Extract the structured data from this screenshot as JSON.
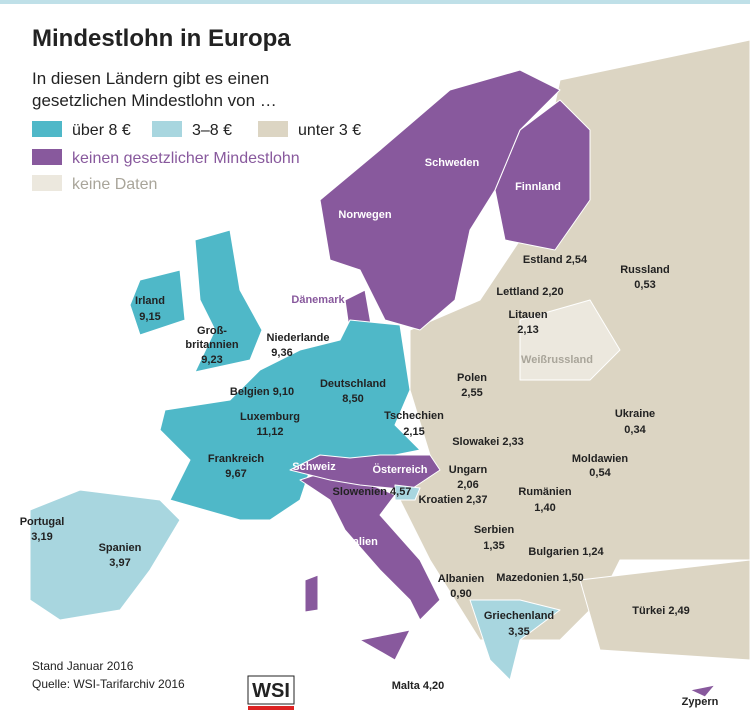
{
  "header": {
    "title": "Mindestlohn in Europa",
    "subtitle": [
      "In diesen Ländern gibt es einen",
      "gesetzlichen Mindestlohn von …"
    ]
  },
  "legend": [
    {
      "label": "über 8 €",
      "color": "#4fb8c8"
    },
    {
      "label": "3–8 €",
      "color": "#a8d6df"
    },
    {
      "label": "unter 3 €",
      "color": "#dcd5c3"
    },
    {
      "label": "keinen gesetzlicher Mindestlohn",
      "color": "#88599d"
    },
    {
      "label": "keine Daten",
      "color": "#ece8de"
    }
  ],
  "countries": [
    {
      "lines": [
        "Irland"
      ],
      "wage": "9,15",
      "color": "#4fb8c8"
    },
    {
      "lines": [
        "Groß-",
        "britannien"
      ],
      "wage": "9,23",
      "color": "#4fb8c8"
    },
    {
      "lines": [
        "Niederlande"
      ],
      "wage": "9,36",
      "color": "#4fb8c8"
    },
    {
      "lines": [
        "Belgien"
      ],
      "wage": "9,10",
      "color": "#4fb8c8"
    },
    {
      "lines": [
        "Luxemburg"
      ],
      "wage": "11,12",
      "color": "#4fb8c8"
    },
    {
      "lines": [
        "Frankreich"
      ],
      "wage": "9,67",
      "color": "#4fb8c8"
    },
    {
      "lines": [
        "Deutschland"
      ],
      "wage": "8,50",
      "color": "#4fb8c8"
    },
    {
      "lines": [
        "Portugal"
      ],
      "wage": "3,19",
      "color": "#a8d6df"
    },
    {
      "lines": [
        "Spanien"
      ],
      "wage": "3,97",
      "color": "#a8d6df"
    },
    {
      "lines": [
        "Schweiz"
      ],
      "color": "#88599d"
    },
    {
      "lines": [
        "Österreich"
      ],
      "color": "#88599d"
    },
    {
      "lines": [
        "Slowenien"
      ],
      "wage": "4,57",
      "color": "#a8d6df"
    },
    {
      "lines": [
        "Italien"
      ],
      "color": "#88599d"
    },
    {
      "lines": [
        "Malta"
      ],
      "wage": "4,20",
      "color": "#a8d6df"
    },
    {
      "lines": [
        "Norwegen"
      ],
      "color": "#88599d"
    },
    {
      "lines": [
        "Schweden"
      ],
      "color": "#88599d"
    },
    {
      "lines": [
        "Finnland"
      ],
      "color": "#88599d"
    },
    {
      "lines": [
        "Dänemark"
      ],
      "color": "#88599d"
    },
    {
      "lines": [
        "Estland"
      ],
      "wage": "2,54",
      "color": "#dcd5c3"
    },
    {
      "lines": [
        "Lettland"
      ],
      "wage": "2,20",
      "color": "#dcd5c3"
    },
    {
      "lines": [
        "Litauen"
      ],
      "wage": "2,13",
      "color": "#dcd5c3"
    },
    {
      "lines": [
        "Russland"
      ],
      "wage": "0,53",
      "color": "#dcd5c3"
    },
    {
      "lines": [
        "Weißrussland"
      ],
      "color": "#ece8de"
    },
    {
      "lines": [
        "Polen"
      ],
      "wage": "2,55",
      "color": "#dcd5c3"
    },
    {
      "lines": [
        "Tschechien"
      ],
      "wage": "2,15",
      "color": "#dcd5c3"
    },
    {
      "lines": [
        "Slowakei"
      ],
      "wage": "2,33",
      "color": "#dcd5c3"
    },
    {
      "lines": [
        "Ungarn"
      ],
      "wage": "2,06",
      "color": "#dcd5c3"
    },
    {
      "lines": [
        "Kroatien"
      ],
      "wage": "2,37",
      "color": "#dcd5c3"
    },
    {
      "lines": [
        "Ukraine"
      ],
      "wage": "0,34",
      "color": "#dcd5c3"
    },
    {
      "lines": [
        "Moldawien"
      ],
      "wage": "0,54",
      "color": "#dcd5c3"
    },
    {
      "lines": [
        "Rumänien"
      ],
      "wage": "1,40",
      "color": "#dcd5c3"
    },
    {
      "lines": [
        "Serbien"
      ],
      "wage": "1,35",
      "color": "#dcd5c3"
    },
    {
      "lines": [
        "Bulgarien"
      ],
      "wage": "1,24",
      "color": "#dcd5c3"
    },
    {
      "lines": [
        "Albanien"
      ],
      "wage": "0,90",
      "color": "#dcd5c3"
    },
    {
      "lines": [
        "Mazedonien"
      ],
      "wage": "1,50",
      "color": "#dcd5c3"
    },
    {
      "lines": [
        "Griechenland"
      ],
      "wage": "3,35",
      "color": "#a8d6df"
    },
    {
      "lines": [
        "Türkei"
      ],
      "wage": "2,49",
      "color": "#dcd5c3"
    },
    {
      "lines": [
        "Zypern"
      ],
      "color": "#88599d"
    }
  ],
  "footer": {
    "date": "Stand Januar 2016",
    "source": "Quelle: WSI-Tarifarchiv 2016",
    "logo": "WSI"
  }
}
